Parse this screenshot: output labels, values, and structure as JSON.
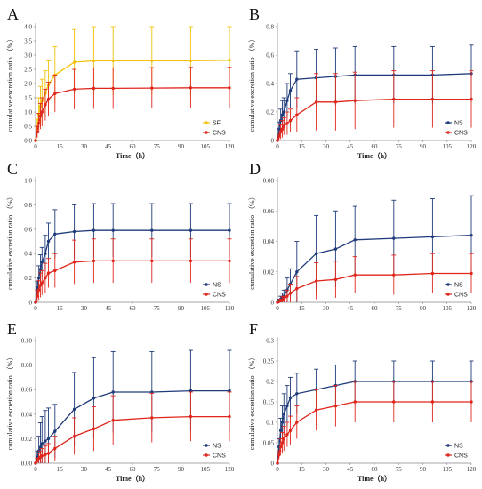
{
  "colors": {
    "sf": "#f2c20a",
    "ns": "#1f3b7a",
    "cns": "#e0261c",
    "axis": "#888888"
  },
  "chart_data": [
    {
      "type": "line",
      "panel": "A",
      "ylabel": "cumulative excretion ratio （%）",
      "xlabel": "Time（h）",
      "xlim": [
        0,
        120
      ],
      "ylim": [
        0,
        4.0
      ],
      "xticks": [
        "0",
        "15",
        "30",
        "45",
        "60",
        "75",
        "90",
        "105",
        "120"
      ],
      "yticks": [
        "0.0",
        "0.5",
        "1.0",
        "1.5",
        "2.0",
        "2.5",
        "3.0",
        "3.5",
        "4.0"
      ],
      "x": [
        0,
        1,
        2,
        3,
        4,
        6,
        8,
        12,
        24,
        36,
        48,
        72,
        96,
        120
      ],
      "series": [
        {
          "name": "SF",
          "color": "sf",
          "values": [
            0,
            0.45,
            0.9,
            1.2,
            1.4,
            1.65,
            1.95,
            2.3,
            2.75,
            2.8,
            2.8,
            2.8,
            2.8,
            2.82
          ],
          "errors": [
            0,
            0.3,
            0.6,
            0.7,
            0.75,
            0.8,
            0.85,
            1.0,
            1.15,
            1.2,
            1.2,
            1.2,
            1.2,
            1.2
          ]
        },
        {
          "name": "CNS",
          "color": "cns",
          "values": [
            0,
            0.3,
            0.6,
            0.85,
            1.0,
            1.25,
            1.45,
            1.65,
            1.8,
            1.83,
            1.83,
            1.84,
            1.85,
            1.85
          ],
          "errors": [
            0,
            0.2,
            0.35,
            0.45,
            0.5,
            0.55,
            0.6,
            0.65,
            0.7,
            0.72,
            0.72,
            0.72,
            0.72,
            0.72
          ]
        }
      ],
      "legend": "lower-right"
    },
    {
      "type": "line",
      "panel": "B",
      "ylabel": "cumulative excretion ratio （%）",
      "xlabel": "Time（h）",
      "xlim": [
        0,
        120
      ],
      "ylim": [
        0,
        0.8
      ],
      "xticks": [
        "0",
        "15",
        "30",
        "45",
        "60",
        "75",
        "90",
        "105",
        "120"
      ],
      "yticks": [
        "0",
        "0.2",
        "0.4",
        "0.6",
        "0.8"
      ],
      "x": [
        0,
        1,
        2,
        3,
        4,
        6,
        8,
        12,
        24,
        36,
        48,
        72,
        96,
        120
      ],
      "series": [
        {
          "name": "NS",
          "color": "ns",
          "values": [
            0,
            0.08,
            0.14,
            0.18,
            0.2,
            0.28,
            0.35,
            0.43,
            0.44,
            0.45,
            0.46,
            0.46,
            0.46,
            0.47
          ],
          "errors": [
            0,
            0.05,
            0.08,
            0.1,
            0.1,
            0.12,
            0.12,
            0.2,
            0.2,
            0.2,
            0.2,
            0.2,
            0.2,
            0.2
          ]
        },
        {
          "name": "CNS",
          "color": "cns",
          "values": [
            0,
            0.03,
            0.06,
            0.08,
            0.1,
            0.12,
            0.14,
            0.18,
            0.27,
            0.27,
            0.28,
            0.29,
            0.29,
            0.29
          ],
          "errors": [
            0,
            0.03,
            0.05,
            0.06,
            0.06,
            0.08,
            0.08,
            0.12,
            0.2,
            0.2,
            0.2,
            0.2,
            0.2,
            0.2
          ]
        }
      ],
      "legend": "lower-right"
    },
    {
      "type": "line",
      "panel": "C",
      "ylabel": "cumulative excretion ratio （%）",
      "xlabel": "",
      "xlim": [
        0,
        120
      ],
      "ylim": [
        0,
        1.0
      ],
      "xticks": [
        "0",
        "15",
        "30",
        "45",
        "60",
        "75",
        "90",
        "105",
        "120"
      ],
      "yticks": [
        "0",
        "0.2",
        "0.4",
        "0.6",
        "0.8",
        "1.0"
      ],
      "x": [
        0,
        1,
        2,
        3,
        4,
        6,
        8,
        12,
        24,
        36,
        48,
        72,
        96,
        120
      ],
      "series": [
        {
          "name": "NS",
          "color": "ns",
          "values": [
            0,
            0.12,
            0.2,
            0.27,
            0.33,
            0.4,
            0.5,
            0.56,
            0.58,
            0.59,
            0.59,
            0.59,
            0.59,
            0.59
          ],
          "errors": [
            0,
            0.05,
            0.1,
            0.12,
            0.12,
            0.15,
            0.15,
            0.2,
            0.22,
            0.22,
            0.22,
            0.22,
            0.22,
            0.22
          ]
        },
        {
          "name": "CNS",
          "color": "cns",
          "values": [
            0,
            0.05,
            0.1,
            0.14,
            0.16,
            0.2,
            0.24,
            0.26,
            0.33,
            0.34,
            0.34,
            0.34,
            0.34,
            0.34
          ],
          "errors": [
            0,
            0.05,
            0.08,
            0.1,
            0.1,
            0.12,
            0.12,
            0.14,
            0.18,
            0.18,
            0.18,
            0.18,
            0.18,
            0.18
          ]
        }
      ],
      "legend": "lower-right"
    },
    {
      "type": "line",
      "panel": "D",
      "ylabel": "cumulative excretion ratio （%）",
      "xlabel": "",
      "xlim": [
        0,
        120
      ],
      "ylim": [
        0,
        0.08
      ],
      "xticks": [
        "0",
        "15",
        "30",
        "45",
        "60",
        "75",
        "90",
        "105",
        "120"
      ],
      "yticks": [
        "0",
        "0.02",
        "0.04",
        "0.06",
        "0.08"
      ],
      "x": [
        0,
        1,
        2,
        3,
        4,
        6,
        8,
        12,
        24,
        36,
        48,
        72,
        96,
        120
      ],
      "series": [
        {
          "name": "NS",
          "color": "ns",
          "values": [
            0,
            0.001,
            0.002,
            0.003,
            0.004,
            0.008,
            0.012,
            0.02,
            0.032,
            0.035,
            0.041,
            0.042,
            0.043,
            0.044
          ],
          "errors": [
            0,
            0.001,
            0.002,
            0.003,
            0.004,
            0.008,
            0.01,
            0.02,
            0.025,
            0.025,
            0.022,
            0.025,
            0.025,
            0.026
          ]
        },
        {
          "name": "CNS",
          "color": "cns",
          "values": [
            0,
            0.0005,
            0.001,
            0.0015,
            0.002,
            0.004,
            0.006,
            0.009,
            0.014,
            0.015,
            0.018,
            0.018,
            0.019,
            0.019
          ],
          "errors": [
            0,
            0.0005,
            0.001,
            0.002,
            0.002,
            0.004,
            0.006,
            0.008,
            0.012,
            0.012,
            0.012,
            0.013,
            0.013,
            0.013
          ]
        }
      ],
      "legend": "lower-right"
    },
    {
      "type": "line",
      "panel": "E",
      "ylabel": "cumulative excretion ratio （%）",
      "xlabel": "Time（h）",
      "xlim": [
        0,
        120
      ],
      "ylim": [
        0,
        0.1
      ],
      "xticks": [
        "0",
        "15",
        "30",
        "45",
        "60",
        "75",
        "90",
        "105",
        "120"
      ],
      "yticks": [
        "0.00",
        "0.02",
        "0.04",
        "0.06",
        "0.08",
        "0.10"
      ],
      "x": [
        0,
        1,
        2,
        3,
        4,
        6,
        8,
        12,
        24,
        36,
        48,
        72,
        96,
        120
      ],
      "series": [
        {
          "name": "NS",
          "color": "ns",
          "values": [
            0,
            0.005,
            0.01,
            0.013,
            0.016,
            0.018,
            0.02,
            0.026,
            0.044,
            0.053,
            0.058,
            0.058,
            0.059,
            0.059
          ],
          "errors": [
            0,
            0.005,
            0.012,
            0.02,
            0.022,
            0.025,
            0.025,
            0.022,
            0.03,
            0.033,
            0.033,
            0.033,
            0.033,
            0.033
          ]
        },
        {
          "name": "CNS",
          "color": "cns",
          "values": [
            0,
            0.002,
            0.004,
            0.005,
            0.006,
            0.007,
            0.008,
            0.012,
            0.022,
            0.028,
            0.035,
            0.037,
            0.038,
            0.038
          ],
          "errors": [
            0,
            0.002,
            0.004,
            0.005,
            0.006,
            0.007,
            0.008,
            0.01,
            0.015,
            0.018,
            0.02,
            0.02,
            0.02,
            0.02
          ]
        }
      ],
      "legend": "lower-right"
    },
    {
      "type": "line",
      "panel": "F",
      "ylabel": "cumulative excretion ratio （%）",
      "xlabel": "Time（h）",
      "xlim": [
        0,
        120
      ],
      "ylim": [
        0,
        0.3
      ],
      "xticks": [
        "0",
        "15",
        "30",
        "45",
        "60",
        "75",
        "90",
        "105",
        "120"
      ],
      "yticks": [
        "0",
        "0.05",
        "0.1",
        "0.15",
        "0.2",
        "0.25",
        "0.3"
      ],
      "x": [
        0,
        1,
        2,
        3,
        4,
        6,
        8,
        12,
        24,
        36,
        48,
        72,
        96,
        120
      ],
      "series": [
        {
          "name": "NS",
          "color": "ns",
          "values": [
            0,
            0.04,
            0.08,
            0.1,
            0.12,
            0.14,
            0.16,
            0.17,
            0.18,
            0.19,
            0.2,
            0.2,
            0.2,
            0.2
          ],
          "errors": [
            0,
            0.02,
            0.03,
            0.04,
            0.05,
            0.05,
            0.05,
            0.05,
            0.05,
            0.05,
            0.05,
            0.05,
            0.05,
            0.05
          ]
        },
        {
          "name": "CNS",
          "color": "cns",
          "values": [
            0,
            0.02,
            0.04,
            0.05,
            0.06,
            0.07,
            0.08,
            0.1,
            0.13,
            0.14,
            0.15,
            0.15,
            0.15,
            0.15
          ],
          "errors": [
            0,
            0.01,
            0.02,
            0.025,
            0.03,
            0.03,
            0.035,
            0.04,
            0.05,
            0.05,
            0.05,
            0.05,
            0.05,
            0.05
          ]
        }
      ],
      "legend": "lower-right"
    }
  ]
}
